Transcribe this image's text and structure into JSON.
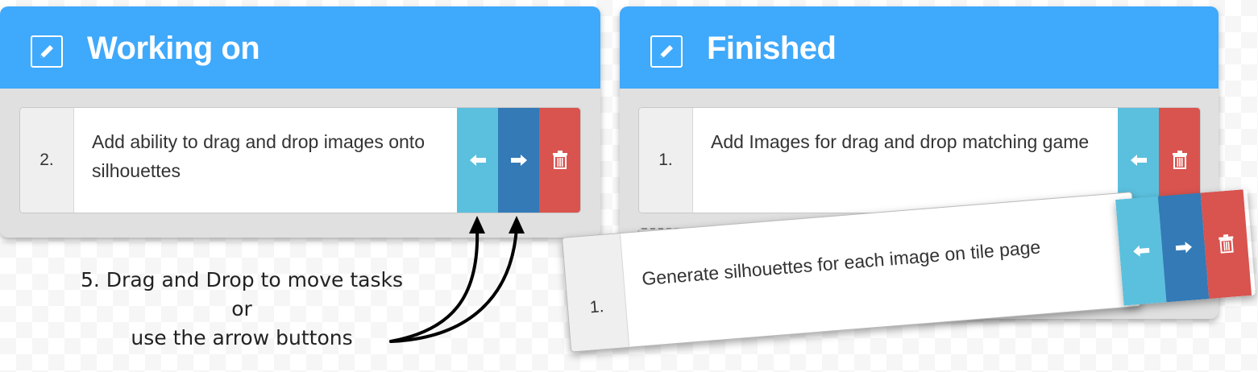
{
  "columns": [
    {
      "title": "Working on",
      "tasks": [
        {
          "number": "2.",
          "text": "Add ability to drag and drop images onto silhouettes"
        }
      ]
    },
    {
      "title": "Finished",
      "tasks": [
        {
          "number": "1.",
          "text": "Add Images for drag and drop matching game"
        }
      ]
    }
  ],
  "dragging_task": {
    "number": "1.",
    "text": "Generate silhouettes for each image on tile page"
  },
  "instructions": {
    "line1": "5. Drag and Drop to move tasks",
    "line2": "or",
    "line3": "use the arrow buttons"
  },
  "icons": {
    "edit": "pencil-icon",
    "move_left": "arrow-left-icon",
    "move_right": "arrow-right-icon",
    "delete": "trash-icon"
  },
  "colors": {
    "header": "#3fa9fb",
    "move_left": "#5bc0de",
    "move_right": "#337ab7",
    "delete": "#d9534f",
    "panel_body": "#e0e0e0"
  }
}
